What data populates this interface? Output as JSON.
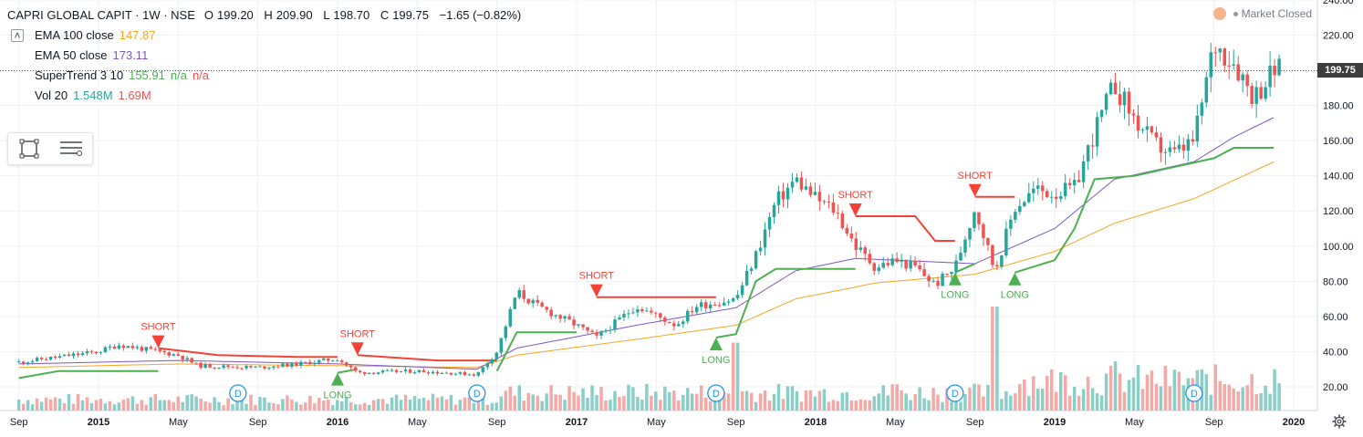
{
  "header": {
    "title": "CAPRI GLOBAL CAPIT · 1W · NSE",
    "open_label": "O",
    "open": "199.20",
    "high_label": "H",
    "high": "209.90",
    "low_label": "L",
    "low": "198.70",
    "close_label": "C",
    "close": "199.75",
    "change": "−1.65 (−0.82%)",
    "collapse_glyph": "˄"
  },
  "indicators": [
    {
      "label": "EMA 100 close",
      "values": [
        "147.87"
      ],
      "colors": [
        "#f5a623"
      ]
    },
    {
      "label": "EMA 50 close",
      "values": [
        "173.11"
      ],
      "colors": [
        "#7e57c2"
      ]
    },
    {
      "label": "SuperTrend 3 10",
      "values": [
        "155.91",
        "n/a",
        "n/a"
      ],
      "colors": [
        "#4caf50",
        "#4caf50",
        "#ef5350"
      ]
    },
    {
      "label": "Vol 20",
      "values": [
        "1.548M",
        "1.69M"
      ],
      "colors": [
        "#26a69a",
        "#ef5350"
      ]
    }
  ],
  "status": {
    "market": "Market Closed"
  },
  "last_price_tag": "199.75",
  "toolbar": {
    "tools": [
      "rectangle-tool",
      "text-lines-tool"
    ]
  },
  "chart_data": {
    "type": "candlestick",
    "symbol": "CAPRI GLOBAL CAPIT",
    "interval": "1W",
    "exchange": "NSE",
    "ylim": [
      13,
      240
    ],
    "y_ticks": [
      20,
      40,
      60,
      80,
      100,
      120,
      140,
      160,
      180,
      200,
      220,
      240
    ],
    "x_tick_labels": [
      "Sep",
      "2015",
      "May",
      "Sep",
      "2016",
      "May",
      "Sep",
      "2017",
      "May",
      "Sep",
      "2018",
      "May",
      "Sep",
      "2019",
      "May",
      "Sep",
      "2020"
    ],
    "close_line": 199.75,
    "price_anchors": [
      [
        "2014-09",
        34
      ],
      [
        "2015-01",
        40
      ],
      [
        "2015-02",
        44
      ],
      [
        "2015-05",
        38
      ],
      [
        "2015-06",
        32
      ],
      [
        "2015-09",
        31
      ],
      [
        "2015-11",
        33
      ],
      [
        "2016-01",
        36
      ],
      [
        "2016-02",
        28
      ],
      [
        "2016-05",
        29
      ],
      [
        "2016-08",
        27
      ],
      [
        "2016-09",
        40
      ],
      [
        "2016-10",
        74
      ],
      [
        "2016-11",
        66
      ],
      [
        "2017-01",
        55
      ],
      [
        "2017-02",
        48
      ],
      [
        "2017-04",
        66
      ],
      [
        "2017-06",
        55
      ],
      [
        "2017-07",
        66
      ],
      [
        "2017-09",
        70
      ],
      [
        "2017-10",
        95
      ],
      [
        "2017-11",
        125
      ],
      [
        "2017-12",
        138
      ],
      [
        "2018-01",
        127
      ],
      [
        "2018-02",
        120
      ],
      [
        "2018-03",
        100
      ],
      [
        "2018-04",
        88
      ],
      [
        "2018-05",
        92
      ],
      [
        "2018-06",
        88
      ],
      [
        "2018-07",
        78
      ],
      [
        "2018-08",
        88
      ],
      [
        "2018-09",
        122
      ],
      [
        "2018-10",
        86
      ],
      [
        "2018-11",
        122
      ],
      [
        "2018-12",
        132
      ],
      [
        "2019-01",
        130
      ],
      [
        "2019-02",
        133
      ],
      [
        "2019-03",
        165
      ],
      [
        "2019-04",
        192
      ],
      [
        "2019-05",
        172
      ],
      [
        "2019-06",
        158
      ],
      [
        "2019-07",
        152
      ],
      [
        "2019-08",
        160
      ],
      [
        "2019-09",
        215
      ],
      [
        "2019-10",
        205
      ],
      [
        "2019-11",
        185
      ],
      [
        "2019-12",
        199.75
      ]
    ],
    "ema100_anchors": [
      [
        "2014-09",
        31
      ],
      [
        "2015-05",
        33
      ],
      [
        "2016-01",
        32
      ],
      [
        "2016-08",
        31
      ],
      [
        "2016-10",
        38
      ],
      [
        "2017-04",
        47
      ],
      [
        "2017-09",
        55
      ],
      [
        "2017-12",
        70
      ],
      [
        "2018-04",
        79
      ],
      [
        "2018-09",
        84
      ],
      [
        "2019-01",
        97
      ],
      [
        "2019-04",
        113
      ],
      [
        "2019-08",
        127
      ],
      [
        "2019-12",
        147.87
      ]
    ],
    "ema50_anchors": [
      [
        "2014-09",
        33
      ],
      [
        "2015-05",
        35
      ],
      [
        "2016-01",
        33
      ],
      [
        "2016-08",
        30
      ],
      [
        "2016-10",
        42
      ],
      [
        "2017-04",
        55
      ],
      [
        "2017-09",
        65
      ],
      [
        "2017-12",
        86
      ],
      [
        "2018-03",
        93
      ],
      [
        "2018-09",
        90
      ],
      [
        "2019-01",
        110
      ],
      [
        "2019-04",
        138
      ],
      [
        "2019-08",
        148
      ],
      [
        "2019-10",
        162
      ],
      [
        "2019-12",
        173.11
      ]
    ],
    "supertrend_segments": [
      {
        "trend": "long",
        "points": [
          [
            "2014-09",
            25
          ],
          [
            "2014-11",
            29
          ],
          [
            "2015-04",
            29
          ]
        ]
      },
      {
        "trend": "short",
        "points": [
          [
            "2015-04",
            42
          ],
          [
            "2015-07",
            38
          ],
          [
            "2015-11",
            37
          ],
          [
            "2016-01",
            37
          ]
        ]
      },
      {
        "trend": "long",
        "points": [
          [
            "2016-01",
            28
          ],
          [
            "2016-02",
            30
          ]
        ]
      },
      {
        "trend": "short",
        "points": [
          [
            "2016-02",
            38
          ],
          [
            "2016-06",
            35
          ],
          [
            "2016-09",
            35
          ]
        ]
      },
      {
        "trend": "long",
        "points": [
          [
            "2016-09",
            29
          ],
          [
            "2016-10",
            51
          ],
          [
            "2017-01",
            51
          ]
        ]
      },
      {
        "trend": "short",
        "points": [
          [
            "2017-02",
            71
          ],
          [
            "2017-08",
            71
          ]
        ]
      },
      {
        "trend": "long",
        "points": [
          [
            "2017-08",
            48
          ],
          [
            "2017-09",
            50
          ],
          [
            "2017-10",
            80
          ],
          [
            "2017-11",
            87
          ],
          [
            "2018-03",
            87
          ]
        ]
      },
      {
        "trend": "short",
        "points": [
          [
            "2018-03",
            117
          ],
          [
            "2018-06",
            117
          ],
          [
            "2018-07",
            103
          ],
          [
            "2018-08",
            103
          ]
        ]
      },
      {
        "trend": "long",
        "points": [
          [
            "2018-08",
            85
          ],
          [
            "2018-09",
            90
          ]
        ]
      },
      {
        "trend": "short",
        "points": [
          [
            "2018-09",
            128
          ],
          [
            "2018-11",
            128
          ]
        ]
      },
      {
        "trend": "long",
        "points": [
          [
            "2018-11",
            85
          ],
          [
            "2019-01",
            92
          ],
          [
            "2019-02",
            110
          ],
          [
            "2019-03",
            138
          ],
          [
            "2019-05",
            140
          ],
          [
            "2019-07",
            145
          ],
          [
            "2019-09",
            150
          ],
          [
            "2019-10",
            155.91
          ],
          [
            "2019-12",
            155.91
          ]
        ]
      }
    ],
    "signals": [
      {
        "type": "SHORT",
        "date": "2015-04",
        "price": 42
      },
      {
        "type": "LONG",
        "date": "2016-01",
        "price": 28
      },
      {
        "type": "SHORT",
        "date": "2016-02",
        "price": 38
      },
      {
        "type": "SHORT",
        "date": "2017-02",
        "price": 71
      },
      {
        "type": "LONG",
        "date": "2017-08",
        "price": 48
      },
      {
        "type": "SHORT",
        "date": "2018-03",
        "price": 117
      },
      {
        "type": "LONG",
        "date": "2018-08",
        "price": 85
      },
      {
        "type": "SHORT",
        "date": "2018-09",
        "price": 128
      },
      {
        "type": "LONG",
        "date": "2018-11",
        "price": 85
      }
    ],
    "dividend_markers": [
      {
        "label": "D",
        "date": "2015-08"
      },
      {
        "label": "D",
        "date": "2016-08"
      },
      {
        "label": "D",
        "date": "2017-08"
      },
      {
        "label": "D",
        "date": "2018-08"
      },
      {
        "label": "D",
        "date": "2019-08"
      }
    ],
    "volume_spikes": [
      {
        "date": "2017-09",
        "level": 0.62
      },
      {
        "date": "2018-05",
        "level": 0.24
      },
      {
        "date": "2018-10",
        "level": 0.95
      },
      {
        "date": "2019-04",
        "level": 0.45
      }
    ],
    "volume_baseline": 0.12,
    "colors": {
      "up": "#26a69a",
      "down": "#ef5350",
      "ema100": "#f5a623",
      "ema50": "#7e57c2",
      "supertrend_long": "#4caf50",
      "supertrend_short": "#f44336",
      "vol_up": "#89cfc8",
      "vol_down": "#f4a9a7",
      "dividend": "#2196f3",
      "grid": "#eef0f3",
      "close_line": "#2e7d32"
    }
  }
}
